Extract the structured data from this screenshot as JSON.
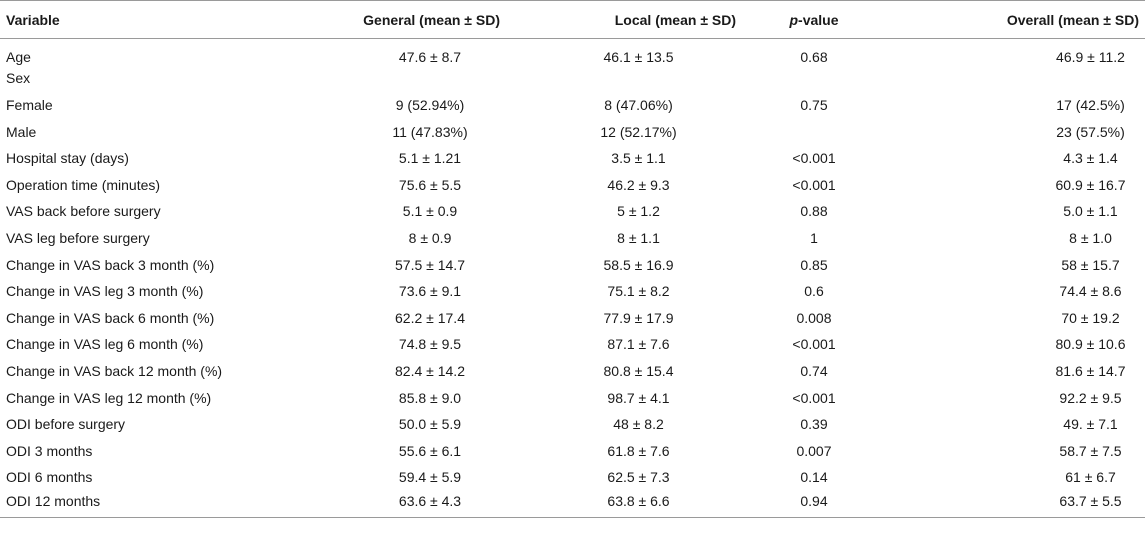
{
  "table": {
    "headers": {
      "variable": "Variable",
      "general": "General (mean ± SD)",
      "local": "Local (mean ± SD)",
      "p_italic": "p",
      "p_rest": "-value",
      "overall": "Overall (mean ± SD)"
    },
    "rows": [
      {
        "variable": "Age",
        "general": "47.6 ± 8.7",
        "local": "46.1 ± 13.5",
        "p": "0.68",
        "overall": "46.9 ± 11.2"
      },
      {
        "variable": "Sex",
        "general": "",
        "local": "",
        "p": "",
        "overall": ""
      },
      {
        "variable": "Female",
        "general": "9 (52.94%)",
        "local": "8 (47.06%)",
        "p": "0.75",
        "overall": "17 (42.5%)"
      },
      {
        "variable": "Male",
        "general": "11 (47.83%)",
        "local": "12 (52.17%)",
        "p": "",
        "overall": "23 (57.5%)"
      },
      {
        "variable": "Hospital stay (days)",
        "general": "5.1 ± 1.21",
        "local": "3.5 ± 1.1",
        "p": "<0.001",
        "overall": "4.3 ± 1.4"
      },
      {
        "variable": "Operation time (minutes)",
        "general": "75.6 ± 5.5",
        "local": "46.2 ± 9.3",
        "p": "<0.001",
        "overall": "60.9 ± 16.7"
      },
      {
        "variable": "VAS back before surgery",
        "general": "5.1 ± 0.9",
        "local": "5 ± 1.2",
        "p": "0.88",
        "overall": "5.0 ± 1.1"
      },
      {
        "variable": "VAS leg before surgery",
        "general": "8 ± 0.9",
        "local": "8 ± 1.1",
        "p": "1",
        "overall": "8 ± 1.0"
      },
      {
        "variable": "Change in VAS back 3 month (%)",
        "general": "57.5 ± 14.7",
        "local": "58.5 ± 16.9",
        "p": "0.85",
        "overall": "58 ± 15.7"
      },
      {
        "variable": "Change in VAS leg 3 month (%)",
        "general": "73.6 ± 9.1",
        "local": "75.1 ± 8.2",
        "p": "0.6",
        "overall": "74.4 ± 8.6"
      },
      {
        "variable": "Change in VAS back 6 month (%)",
        "general": "62.2 ± 17.4",
        "local": "77.9 ± 17.9",
        "p": "0.008",
        "overall": "70 ± 19.2"
      },
      {
        "variable": "Change in VAS leg 6 month (%)",
        "general": "74.8 ± 9.5",
        "local": "87.1 ± 7.6",
        "p": "<0.001",
        "overall": "80.9 ± 10.6"
      },
      {
        "variable": "Change in VAS back 12 month (%)",
        "general": "82.4 ± 14.2",
        "local": "80.8 ± 15.4",
        "p": "0.74",
        "overall": "81.6 ± 14.7"
      },
      {
        "variable": "Change in VAS leg 12 month (%)",
        "general": "85.8 ± 9.0",
        "local": "98.7 ± 4.1",
        "p": "<0.001",
        "overall": "92.2 ± 9.5"
      },
      {
        "variable": "ODI before surgery",
        "general": "50.0 ± 5.9",
        "local": "48 ± 8.2",
        "p": "0.39",
        "overall": "49. ± 7.1"
      },
      {
        "variable": "ODI 3 months",
        "general": "55.6 ± 6.1",
        "local": "61.8 ± 7.6",
        "p": "0.007",
        "overall": "58.7 ± 7.5"
      },
      {
        "variable": "ODI 6 months",
        "general": "59.4 ± 5.9",
        "local": "62.5 ± 7.3",
        "p": "0.14",
        "overall": "61 ± 6.7"
      },
      {
        "variable": "ODI 12 months",
        "general": "63.6 ± 4.3",
        "local": "63.8 ± 6.6",
        "p": "0.94",
        "overall": "63.7 ± 5.5"
      }
    ]
  }
}
